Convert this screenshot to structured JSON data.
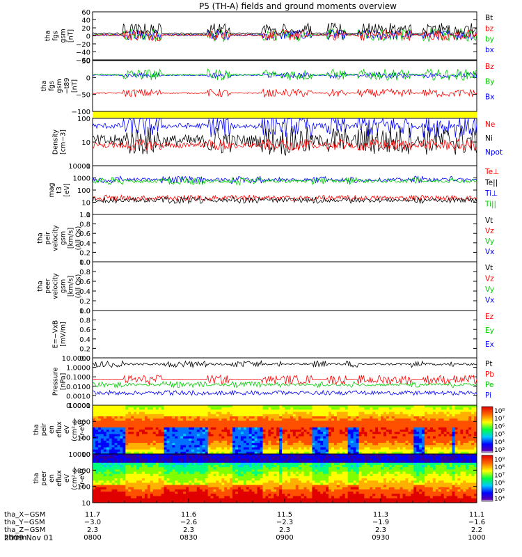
{
  "chart_data": {
    "type": "line",
    "title": "P5 (TH-A) fields and ground moments overview",
    "date": "2009 Nov 01",
    "panels": [
      {
        "id": "fgs",
        "ylabel": [
          "tha",
          "fgs",
          "gsm",
          "[nT]"
        ],
        "ticks": [
          "60",
          "40",
          "20",
          "0",
          "−20",
          "−40",
          "−60"
        ],
        "ylim": [
          -70,
          65
        ],
        "legend": [
          {
            "name": "Bt",
            "color": "#000000"
          },
          {
            "name": "bz",
            "color": "#ff0000"
          },
          {
            "name": "by",
            "color": "#00cc00"
          },
          {
            "name": "bx",
            "color": "#0000ff"
          }
        ]
      },
      {
        "id": "t89",
        "ylabel": [
          "tha",
          "fgs",
          "gsm",
          "−t89",
          "[nT]"
        ],
        "ticks": [
          "50",
          "0",
          "−50",
          "−100"
        ],
        "ylim": [
          -120,
          60
        ],
        "legend": [
          {
            "name": "Bz",
            "color": "#ff0000"
          },
          {
            "name": "By",
            "color": "#00cc00"
          },
          {
            "name": "Bx",
            "color": "#0000ff"
          }
        ]
      },
      {
        "id": "density",
        "ylabel": [
          "Density",
          "[cm−3]"
        ],
        "ticks": [
          "100",
          "10",
          "1"
        ],
        "ylim": [
          1,
          300
        ],
        "scale": "log",
        "legend": [
          {
            "name": "Ne",
            "color": "#ff0000"
          },
          {
            "name": "Ni",
            "color": "#000000"
          },
          {
            "name": "Npot",
            "color": "#0000ff"
          }
        ]
      },
      {
        "id": "temp",
        "ylabel": [
          "mag",
          "t3",
          "[eV]"
        ],
        "ticks": [
          "10000",
          "1000",
          "100",
          "10",
          "1"
        ],
        "ylim": [
          1,
          10000
        ],
        "scale": "log",
        "legend": [
          {
            "name": "Te⊥",
            "color": "#ff0000"
          },
          {
            "name": "Te||",
            "color": "#000000"
          },
          {
            "name": "Ti⊥",
            "color": "#0000ff"
          },
          {
            "name": "Ti||",
            "color": "#00cc00"
          }
        ]
      },
      {
        "id": "peir_vel",
        "ylabel": [
          "tha",
          "peir",
          "velocity",
          "gsm",
          "[km/s]",
          "(All Qs)"
        ],
        "ticks": [
          "1.0",
          "0.8",
          "0.6",
          "0.4",
          "0.2",
          "0.0"
        ],
        "ylim": [
          0,
          1
        ],
        "legend": [
          {
            "name": "Vt",
            "color": "#000000"
          },
          {
            "name": "Vz",
            "color": "#ff0000"
          },
          {
            "name": "Vy",
            "color": "#00cc00"
          },
          {
            "name": "Vx",
            "color": "#0000ff"
          }
        ]
      },
      {
        "id": "peer_vel",
        "ylabel": [
          "tha",
          "peer",
          "velocity",
          "gsm",
          "[km/s]",
          "(All Qs)"
        ],
        "ticks": [
          "1.0",
          "0.8",
          "0.6",
          "0.4",
          "0.2",
          "0.0"
        ],
        "ylim": [
          0,
          1
        ],
        "legend": [
          {
            "name": "Vt",
            "color": "#000000"
          },
          {
            "name": "Vz",
            "color": "#ff0000"
          },
          {
            "name": "Vy",
            "color": "#00cc00"
          },
          {
            "name": "Vx",
            "color": "#0000ff"
          }
        ]
      },
      {
        "id": "efield",
        "ylabel": [
          "E=−VxB",
          "[mV/m]"
        ],
        "ticks": [
          "1.0",
          "0.8",
          "0.6",
          "0.4",
          "0.2",
          "0.0"
        ],
        "ylim": [
          0,
          1
        ],
        "legend": [
          {
            "name": "Ez",
            "color": "#ff0000"
          },
          {
            "name": "Ey",
            "color": "#00cc00"
          },
          {
            "name": "Ex",
            "color": "#0000ff"
          }
        ]
      },
      {
        "id": "pressure",
        "ylabel": [
          "Pressure",
          "[nPa]"
        ],
        "ticks": [
          "10.0000",
          "1.0000",
          "0.1000",
          "0.0100",
          "0.0010",
          "0.0001"
        ],
        "ylim": [
          0.0001,
          10
        ],
        "scale": "log",
        "legend": [
          {
            "name": "Pt",
            "color": "#000000"
          },
          {
            "name": "Pb",
            "color": "#ff0000"
          },
          {
            "name": "Pe",
            "color": "#00cc00"
          },
          {
            "name": "Pi",
            "color": "#0000ff"
          }
        ]
      },
      {
        "id": "peir_spec",
        "type": "heatmap",
        "ylabel": [
          "tha",
          "peir",
          "en",
          "eflux",
          "eV",
          "(cm²-s-",
          "sr-eV)"
        ],
        "ticks": [
          "10000",
          "1000",
          "100",
          "10"
        ],
        "ylim": [
          10,
          30000
        ],
        "scale": "log",
        "colorbar": [
          "10⁸",
          "10⁷",
          "10⁶",
          "10⁵",
          "10⁴",
          "10³"
        ]
      },
      {
        "id": "peer_spec",
        "type": "heatmap",
        "ylabel": [
          "tha",
          "peer",
          "en",
          "eflux",
          "eV",
          "(cm²-s-",
          "sr-eV)"
        ],
        "ticks": [
          "10000",
          "1000",
          "100",
          "10"
        ],
        "ylim": [
          10,
          30000
        ],
        "scale": "log",
        "colorbar": [
          "10⁹",
          "10⁸",
          "10⁷",
          "10⁶",
          "10⁵",
          "10⁴"
        ]
      }
    ],
    "xaxis": {
      "rows": [
        {
          "label": "tha_X−GSM",
          "values": [
            "11.7",
            "11.6",
            "11.5",
            "11.3",
            "11.1"
          ]
        },
        {
          "label": "tha_Y−GSM",
          "values": [
            "−3.0",
            "−2.6",
            "−2.3",
            "−1.9",
            "−1.6"
          ]
        },
        {
          "label": "tha_Z−GSM",
          "values": [
            "2.3",
            "2.3",
            "2.3",
            "2.3",
            "2.2"
          ]
        },
        {
          "label": "hhmm",
          "values": [
            "0800",
            "0830",
            "0900",
            "0930",
            "1000"
          ]
        }
      ]
    }
  }
}
